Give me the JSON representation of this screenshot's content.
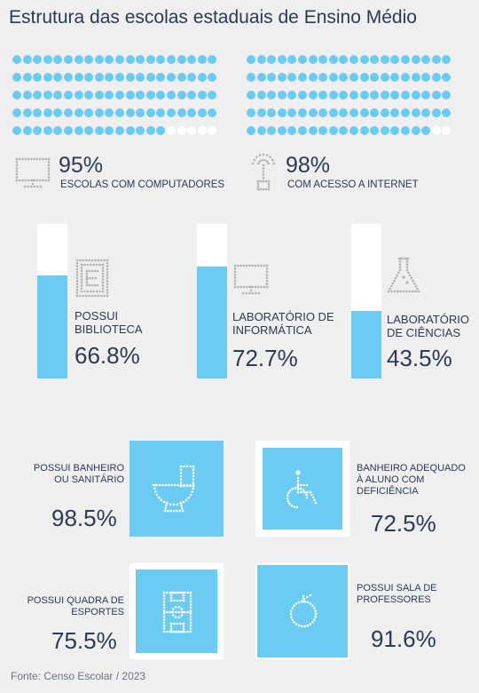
{
  "title": "Estrutura das escolas estaduais de Ensino Médio",
  "colors": {
    "accent": "#6acbf3",
    "empty": "#ffffff",
    "text": "#2b3a55",
    "icon_on_gray": "#b3b3b3",
    "icon_on_blue": "#ffffff"
  },
  "top_stats": [
    {
      "percent": "95%",
      "caption": "ESCOLAS COM COMPUTADORES",
      "icon": "monitor-icon"
    },
    {
      "percent": "98%",
      "caption": "COM ACESSO A INTERNET",
      "icon": "antenna-icon"
    }
  ],
  "middle_stats": [
    {
      "label": "POSSUI BIBLIOTECA",
      "value": "66.8%",
      "icon": "library-book-icon"
    },
    {
      "label": "LABORATÓRIO DE INFORMÁTICA",
      "value": "72.7%",
      "icon": "monitor-icon"
    },
    {
      "label": "LABORATÓRIO DE CIÊNCIAS",
      "value": "43.5%",
      "icon": "flask-icon"
    }
  ],
  "tiles": [
    {
      "label": "POSSUI BANHEIRO OU SANITÁRIO",
      "value": "98.5%",
      "icon": "toilet-icon"
    },
    {
      "label": "BANHEIRO ADEQUADO À ALUNO COM DEFICIÊNCIA",
      "value": "72.5%",
      "icon": "wheelchair-icon"
    },
    {
      "label": "POSSUI QUADRA DE ESPORTES",
      "value": "75.5%",
      "icon": "sports-court-icon"
    },
    {
      "label": "POSSUI SALA DE PROFESSORES",
      "value": "91.6%",
      "icon": "apple-icon"
    }
  ],
  "footer": "Fonte: Censo Escolar / 2023",
  "chart_data": {
    "type": "bar",
    "title": "Estrutura das escolas estaduais de Ensino Médio",
    "categories": [
      "ESCOLAS COM COMPUTADORES",
      "COM ACESSO A INTERNET",
      "POSSUI BIBLIOTECA",
      "LABORATÓRIO DE INFORMÁTICA",
      "LABORATÓRIO DE CIÊNCIAS",
      "POSSUI BANHEIRO OU SANITÁRIO",
      "BANHEIRO ADEQUADO À ALUNO COM DEFICIÊNCIA",
      "POSSUI QUADRA DE ESPORTES",
      "POSSUI SALA DE PROFESSORES"
    ],
    "values": [
      95,
      98,
      66.8,
      72.7,
      43.5,
      98.5,
      72.5,
      75.5,
      91.6
    ],
    "ylim": [
      0,
      100
    ]
  }
}
